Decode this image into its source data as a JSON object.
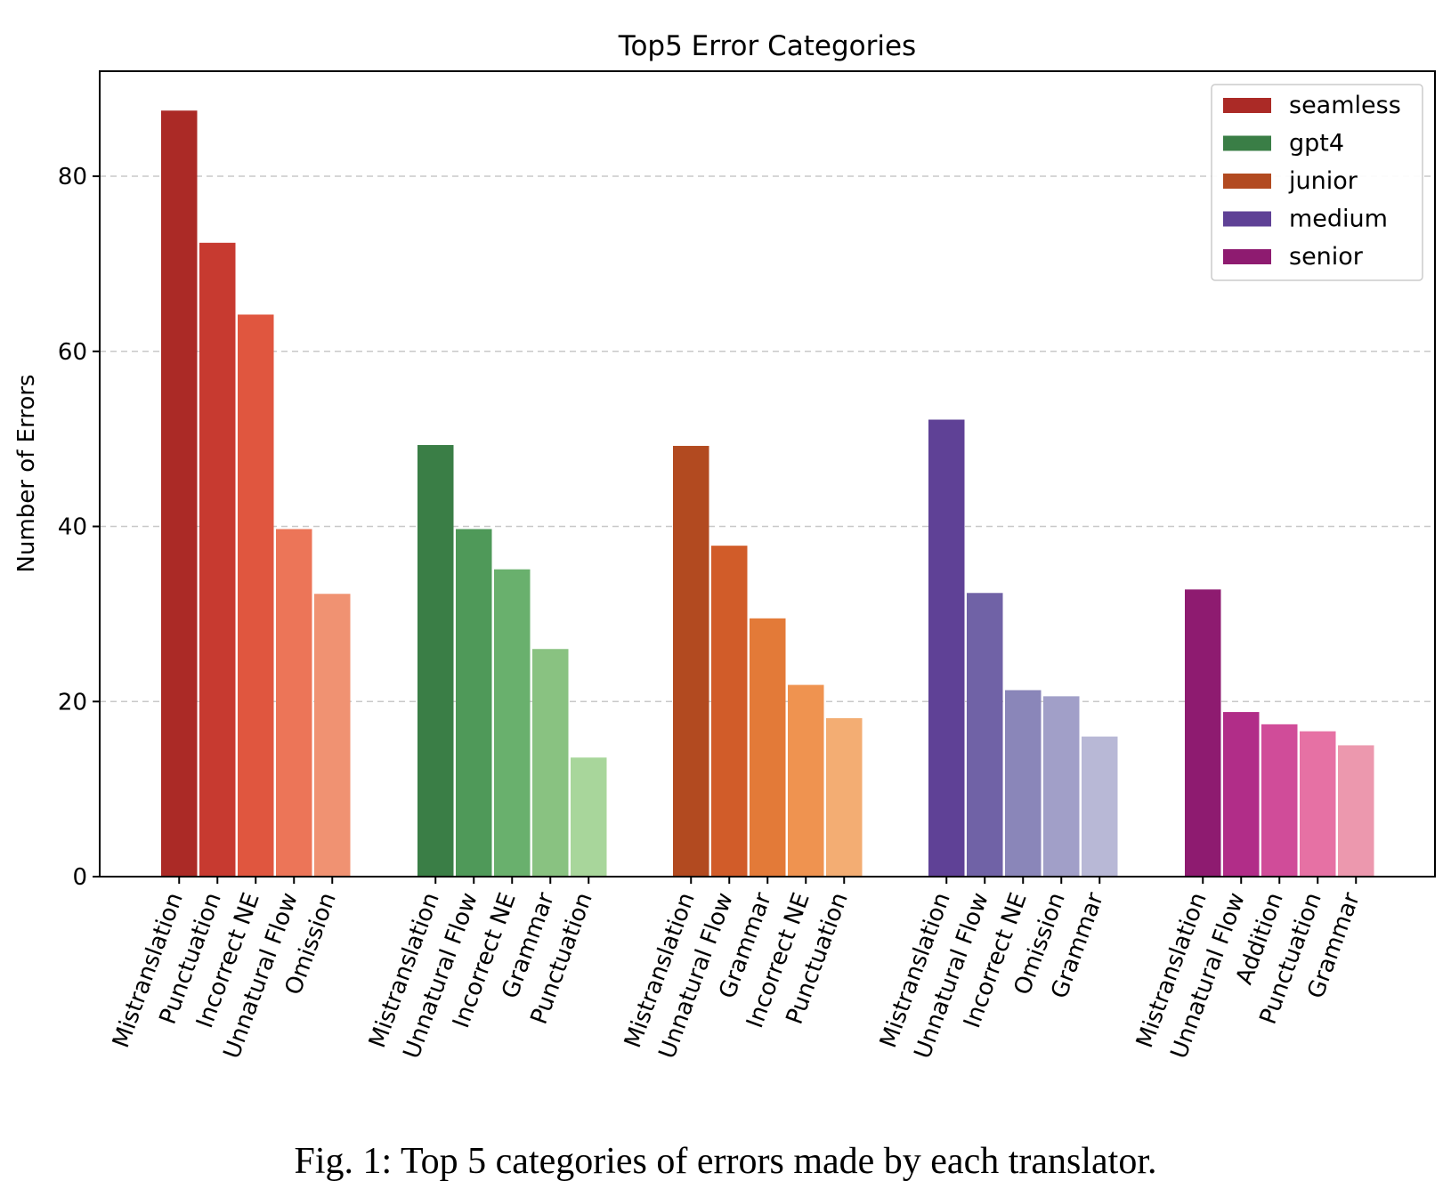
{
  "chart_data": {
    "type": "bar",
    "title": "Top5 Error Categories",
    "xlabel": "",
    "ylabel": "Number of Errors",
    "ylim": [
      0,
      92
    ],
    "yticks": [
      0,
      20,
      40,
      60,
      80
    ],
    "grid": "y dashed",
    "legend_position": "top-right",
    "groups": [
      {
        "name": "seamless",
        "colors": [
          "#ab2a26",
          "#c73a30",
          "#e0563f",
          "#ec7558",
          "#f09272"
        ],
        "categories": [
          "Mistranslation",
          "Punctuation",
          "Incorrect NE",
          "Unnatural Flow",
          "Omission"
        ],
        "values": [
          87.5,
          72.4,
          64.2,
          39.7,
          32.3
        ]
      },
      {
        "name": "gpt4",
        "colors": [
          "#3a7e46",
          "#4f9959",
          "#69b06d",
          "#89c281",
          "#a8d69b"
        ],
        "categories": [
          "Mistranslation",
          "Unnatural Flow",
          "Incorrect NE",
          "Grammar",
          "Punctuation"
        ],
        "values": [
          49.3,
          39.7,
          35.1,
          26.0,
          13.6
        ]
      },
      {
        "name": "junior",
        "colors": [
          "#b24a20",
          "#d15c29",
          "#e37a38",
          "#ef9350",
          "#f3ad73"
        ],
        "categories": [
          "Mistranslation",
          "Unnatural Flow",
          "Grammar",
          "Incorrect NE",
          "Punctuation"
        ],
        "values": [
          49.2,
          37.8,
          29.5,
          21.9,
          18.1
        ]
      },
      {
        "name": "medium",
        "colors": [
          "#5f4196",
          "#7062a6",
          "#8a86b9",
          "#a19fc8",
          "#b8b8d6"
        ],
        "categories": [
          "Mistranslation",
          "Unnatural Flow",
          "Incorrect NE",
          "Omission",
          "Grammar"
        ],
        "values": [
          52.2,
          32.4,
          21.3,
          20.6,
          16.0
        ]
      },
      {
        "name": "senior",
        "colors": [
          "#8e1b70",
          "#b12d88",
          "#d04c99",
          "#e671a4",
          "#ec98ae"
        ],
        "categories": [
          "Mistranslation",
          "Unnatural Flow",
          "Addition",
          "Punctuation",
          "Grammar"
        ],
        "values": [
          32.8,
          18.8,
          17.4,
          16.6,
          15.0
        ]
      }
    ]
  },
  "caption": "Fig. 1: Top 5 categories of errors made by each translator."
}
